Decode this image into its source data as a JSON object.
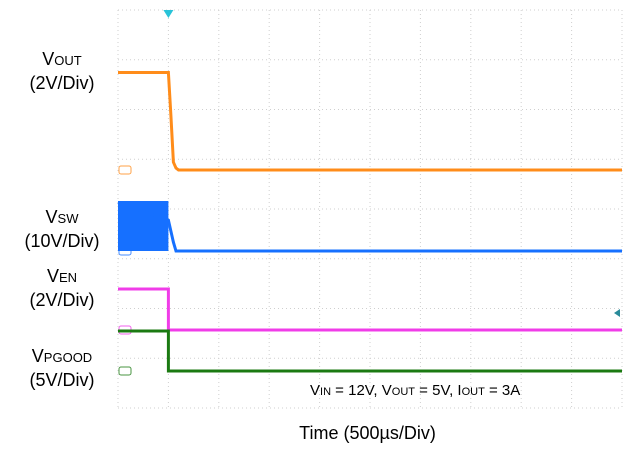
{
  "chart_data": {
    "type": "line",
    "title": "",
    "xlabel": "Time (500µs/Div)",
    "ylabel": "",
    "xlim": [
      0,
      10
    ],
    "trigger_div": 1,
    "grid": true,
    "annotation": {
      "parts": [
        {
          "main": "V",
          "sub": "IN",
          "rest": " = 12V, "
        },
        {
          "main": "V",
          "sub": "OUT",
          "rest": " = 5V, "
        },
        {
          "main": "I",
          "sub": "OUT",
          "rest": " = 3A"
        }
      ]
    },
    "series": [
      {
        "id": "vout",
        "label_main": "V",
        "label_sub": "OUT",
        "label_scale": "(2V/Div)",
        "marker": "C4",
        "color": "#ff8c1a",
        "x": [
          0,
          0.95,
          1.0,
          1.05,
          1.1,
          1.15,
          1.2,
          10
        ],
        "y": [
          2.5,
          2.5,
          2.5,
          1.4,
          0.2,
          0.05,
          0,
          0
        ]
      },
      {
        "id": "vsw",
        "label_main": "V",
        "label_sub": "SW",
        "label_scale": "(10V/Div)",
        "marker": "C2",
        "color": "#1670ff",
        "switching_until": 1.0,
        "x": [
          0,
          1.0,
          1.05,
          1.1,
          1.15,
          10
        ],
        "y": [
          1.1,
          0.7,
          0.45,
          0.2,
          0,
          0
        ]
      },
      {
        "id": "ven",
        "label_main": "V",
        "label_sub": "EN",
        "label_scale": "(2V/Div)",
        "marker": "C3",
        "color": "#f03ce8",
        "x": [
          0,
          1.0,
          1.0,
          10
        ],
        "y": [
          1.0,
          1.0,
          0,
          0
        ]
      },
      {
        "id": "vpgood",
        "label_main": "V",
        "label_sub": "PGOOD",
        "label_scale": "(5V/Div)",
        "marker": "C1",
        "color": "#1b7a12",
        "x": [
          0,
          1.0,
          1.0,
          10
        ],
        "y": [
          1.0,
          1.0,
          0,
          0
        ]
      }
    ]
  }
}
